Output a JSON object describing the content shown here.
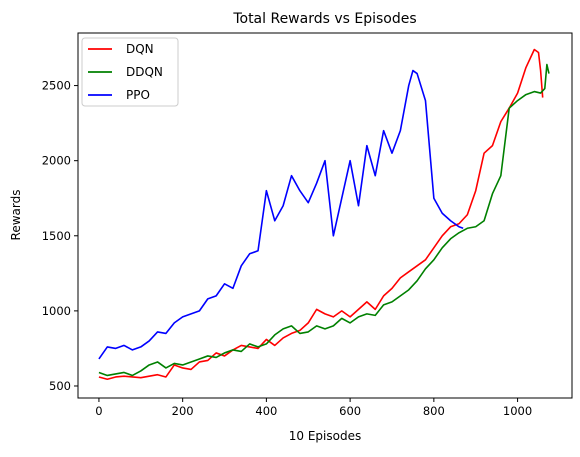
{
  "chart_data": {
    "type": "line",
    "title": "Total Rewards vs Episodes",
    "xlabel": "10 Episodes",
    "ylabel": "Rewards",
    "xlim": [
      -50,
      1130
    ],
    "ylim": [
      420,
      2850
    ],
    "xticks": [
      0,
      200,
      400,
      600,
      800,
      1000
    ],
    "yticks": [
      500,
      1000,
      1500,
      2000,
      2500
    ],
    "grid": false,
    "legend": "top-left",
    "series": [
      {
        "name": "DQN",
        "color": "#ff0000",
        "x": [
          0,
          20,
          40,
          60,
          80,
          100,
          120,
          140,
          160,
          180,
          200,
          220,
          240,
          260,
          280,
          300,
          320,
          340,
          360,
          380,
          400,
          420,
          440,
          460,
          480,
          500,
          520,
          540,
          560,
          580,
          600,
          620,
          640,
          660,
          680,
          700,
          720,
          740,
          760,
          780,
          800,
          820,
          840,
          860,
          880,
          900,
          920,
          940,
          960,
          980,
          1000,
          1020,
          1040,
          1050,
          1055,
          1060
        ],
        "values": [
          560,
          545,
          560,
          565,
          560,
          555,
          565,
          575,
          560,
          640,
          620,
          610,
          660,
          670,
          720,
          700,
          740,
          770,
          760,
          750,
          810,
          770,
          820,
          850,
          870,
          920,
          1010,
          980,
          960,
          1000,
          960,
          1010,
          1060,
          1010,
          1100,
          1150,
          1220,
          1260,
          1300,
          1340,
          1420,
          1500,
          1560,
          1580,
          1640,
          1800,
          2050,
          2100,
          2260,
          2350,
          2450,
          2620,
          2740,
          2720,
          2600,
          2420
        ]
      },
      {
        "name": "DDQN",
        "color": "#008000",
        "x": [
          0,
          20,
          40,
          60,
          80,
          100,
          120,
          140,
          160,
          180,
          200,
          220,
          240,
          260,
          280,
          300,
          320,
          340,
          360,
          380,
          400,
          420,
          440,
          460,
          480,
          500,
          520,
          540,
          560,
          580,
          600,
          620,
          640,
          660,
          680,
          700,
          720,
          740,
          760,
          780,
          800,
          820,
          840,
          860,
          880,
          900,
          920,
          940,
          960,
          980,
          1000,
          1020,
          1040,
          1055,
          1065,
          1070,
          1075
        ],
        "values": [
          590,
          570,
          580,
          590,
          570,
          600,
          640,
          660,
          620,
          650,
          640,
          660,
          680,
          700,
          690,
          720,
          740,
          730,
          780,
          760,
          780,
          840,
          880,
          900,
          850,
          860,
          900,
          880,
          900,
          950,
          920,
          960,
          980,
          970,
          1040,
          1060,
          1100,
          1140,
          1200,
          1280,
          1340,
          1420,
          1480,
          1520,
          1550,
          1560,
          1600,
          1780,
          1900,
          2350,
          2400,
          2440,
          2460,
          2450,
          2480,
          2640,
          2580
        ]
      },
      {
        "name": "PPO",
        "color": "#0000ff",
        "x": [
          0,
          20,
          40,
          60,
          80,
          100,
          120,
          140,
          160,
          180,
          200,
          220,
          240,
          260,
          280,
          300,
          320,
          340,
          360,
          380,
          400,
          420,
          440,
          460,
          480,
          500,
          520,
          540,
          560,
          580,
          600,
          620,
          640,
          660,
          680,
          700,
          720,
          740,
          750,
          760,
          780,
          800,
          820,
          840,
          860,
          870
        ],
        "values": [
          680,
          760,
          750,
          770,
          740,
          760,
          800,
          860,
          850,
          920,
          960,
          980,
          1000,
          1080,
          1100,
          1180,
          1150,
          1300,
          1380,
          1400,
          1800,
          1600,
          1700,
          1900,
          1800,
          1720,
          1850,
          2000,
          1500,
          1750,
          2000,
          1700,
          2100,
          1900,
          2200,
          2050,
          2200,
          2500,
          2600,
          2580,
          2400,
          1750,
          1650,
          1600,
          1560,
          1550
        ]
      }
    ]
  }
}
